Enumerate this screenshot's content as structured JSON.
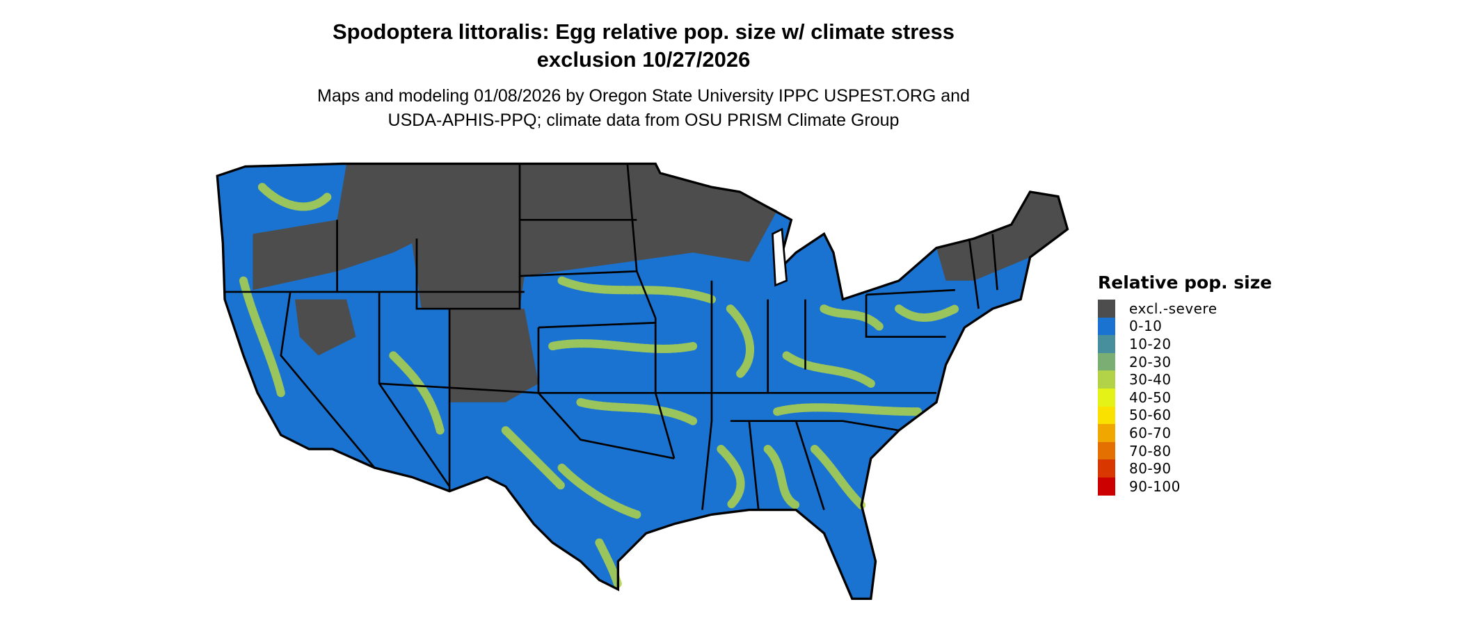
{
  "title": {
    "line1": "Spodoptera littoralis: Egg relative pop. size w/ climate stress",
    "line2": "exclusion 10/27/2026"
  },
  "subtitle": {
    "line1": "Maps and modeling 01/08/2026 by Oregon State University IPPC USPEST.ORG and",
    "line2": "USDA-APHIS-PPQ; climate data from OSU PRISM Climate Group"
  },
  "map": {
    "region": "Contiguous United States",
    "excluded_color": "#4d4d4d",
    "base_color": "#1a73d0",
    "border_color": "#000000"
  },
  "legend": {
    "title": "Relative pop. size",
    "items": [
      {
        "label": "excl.-severe",
        "color": "#4d4d4d"
      },
      {
        "label": "0-10",
        "color": "#1a73d0"
      },
      {
        "label": "10-20",
        "color": "#478f9c"
      },
      {
        "label": "20-30",
        "color": "#7bae72"
      },
      {
        "label": "30-40",
        "color": "#b2d248"
      },
      {
        "label": "40-50",
        "color": "#e4f218"
      },
      {
        "label": "50-60",
        "color": "#fae100"
      },
      {
        "label": "60-70",
        "color": "#f0a800"
      },
      {
        "label": "70-80",
        "color": "#e37000"
      },
      {
        "label": "80-90",
        "color": "#d83800"
      },
      {
        "label": "90-100",
        "color": "#cc0000"
      }
    ]
  }
}
